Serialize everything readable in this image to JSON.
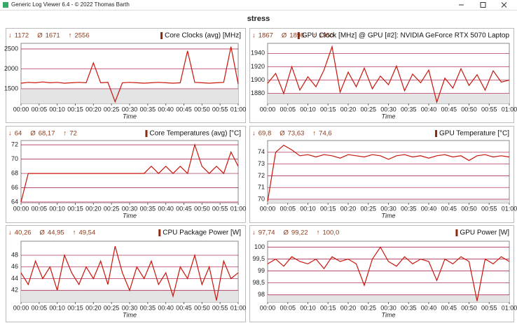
{
  "window_title": "Generic Log Viewer 6.4 - © 2022 Thomas Barth",
  "title": "stress",
  "chart_data": [
    {
      "type": "line",
      "stats": [
        {
          "symbol": "↓",
          "value": 1172
        },
        {
          "symbol": "Ø",
          "value": 1671
        },
        {
          "symbol": "↑",
          "value": 2556
        }
      ],
      "xlabel": "Time",
      "x": [
        0,
        2,
        4,
        6,
        8,
        10,
        12,
        14,
        16,
        18,
        20,
        22,
        24,
        26,
        28,
        30,
        32,
        34,
        36,
        38,
        40,
        42,
        44,
        46,
        48,
        50,
        52,
        54,
        56,
        58,
        60
      ],
      "series": [
        {
          "name": "Core Clocks (avg) [MHz]",
          "color": "#c8140a",
          "values": [
            1640,
            1660,
            1650,
            1670,
            1650,
            1660,
            1640,
            1650,
            1660,
            1650,
            2150,
            1650,
            1660,
            1172,
            1650,
            1660,
            1650,
            1640,
            1650,
            1660,
            1650,
            1640,
            1650,
            2450,
            1660,
            1650,
            1640,
            1650,
            1660,
            2556,
            1620
          ]
        }
      ],
      "xlim": [
        0,
        60
      ],
      "xticks": [
        {
          "value": 0,
          "label": "00:00"
        },
        {
          "value": 5,
          "label": "00:05"
        },
        {
          "value": 10,
          "label": "00:10"
        },
        {
          "value": 15,
          "label": "00:15"
        },
        {
          "value": 20,
          "label": "00:20"
        },
        {
          "value": 25,
          "label": "00:25"
        },
        {
          "value": 30,
          "label": "00:30"
        },
        {
          "value": 35,
          "label": "00:35"
        },
        {
          "value": 40,
          "label": "00:40"
        },
        {
          "value": 45,
          "label": "00:45"
        },
        {
          "value": 50,
          "label": "00:50"
        },
        {
          "value": 55,
          "label": "00:55"
        },
        {
          "value": 60,
          "label": "01:00"
        }
      ],
      "ylim": [
        1130,
        2640
      ],
      "yticks": [
        1500,
        2000,
        2500
      ],
      "grid": true
    },
    {
      "type": "line",
      "stats": [
        {
          "symbol": "↓",
          "value": 1867
        },
        {
          "symbol": "Ø",
          "value": 1898
        },
        {
          "symbol": "↑",
          "value": 1950
        }
      ],
      "xlabel": "Time",
      "x": [
        0,
        2,
        4,
        6,
        8,
        10,
        12,
        14,
        16,
        18,
        20,
        22,
        24,
        26,
        28,
        30,
        32,
        34,
        36,
        38,
        40,
        42,
        44,
        46,
        48,
        50,
        52,
        54,
        56,
        58,
        60
      ],
      "series": [
        {
          "name": "GPU Clock [MHz] @ GPU [#2]: NVIDIA GeForce RTX 5070 Laptop",
          "color": "#c8140a",
          "values": [
            1895,
            1910,
            1880,
            1920,
            1885,
            1905,
            1890,
            1915,
            1950,
            1882,
            1912,
            1890,
            1918,
            1887,
            1906,
            1893,
            1921,
            1884,
            1909,
            1896,
            1915,
            1867,
            1903,
            1888,
            1917,
            1892,
            1908,
            1885,
            1914,
            1897,
            1900
          ]
        }
      ],
      "xlim": [
        0,
        60
      ],
      "xticks": [
        {
          "value": 0,
          "label": "00:00"
        },
        {
          "value": 5,
          "label": "00:05"
        },
        {
          "value": 10,
          "label": "00:10"
        },
        {
          "value": 15,
          "label": "00:15"
        },
        {
          "value": 20,
          "label": "00:20"
        },
        {
          "value": 25,
          "label": "00:25"
        },
        {
          "value": 30,
          "label": "00:30"
        },
        {
          "value": 35,
          "label": "00:35"
        },
        {
          "value": 40,
          "label": "00:40"
        },
        {
          "value": 45,
          "label": "00:45"
        },
        {
          "value": 50,
          "label": "00:50"
        },
        {
          "value": 55,
          "label": "00:55"
        },
        {
          "value": 60,
          "label": "01:00"
        }
      ],
      "ylim": [
        1865,
        1955
      ],
      "yticks": [
        1880,
        1900,
        1920,
        1940
      ],
      "grid": true
    },
    {
      "type": "line",
      "stats": [
        {
          "symbol": "↓",
          "value": 64
        },
        {
          "symbol": "Ø",
          "value": 68.17,
          "label": "68,17"
        },
        {
          "symbol": "↑",
          "value": 72
        }
      ],
      "xlabel": "Time",
      "x": [
        0,
        2,
        4,
        6,
        8,
        10,
        12,
        14,
        16,
        18,
        20,
        22,
        24,
        26,
        28,
        30,
        32,
        34,
        36,
        38,
        40,
        42,
        44,
        46,
        48,
        50,
        52,
        54,
        56,
        58,
        60
      ],
      "series": [
        {
          "name": "Core Temperatures (avg) [°C]",
          "color": "#c8140a",
          "values": [
            64,
            68,
            68,
            68,
            68,
            68,
            68,
            68,
            68,
            68,
            68,
            68,
            68,
            68,
            68,
            68,
            68,
            68,
            69,
            68,
            69,
            68,
            69,
            68,
            72,
            69,
            68,
            69,
            68,
            71,
            69
          ]
        }
      ],
      "xlim": [
        0,
        60
      ],
      "xticks": [
        {
          "value": 0,
          "label": "00:00"
        },
        {
          "value": 5,
          "label": "00:05"
        },
        {
          "value": 10,
          "label": "00:10"
        },
        {
          "value": 15,
          "label": "00:15"
        },
        {
          "value": 20,
          "label": "00:20"
        },
        {
          "value": 25,
          "label": "00:25"
        },
        {
          "value": 30,
          "label": "00:30"
        },
        {
          "value": 35,
          "label": "00:35"
        },
        {
          "value": 40,
          "label": "00:40"
        },
        {
          "value": 45,
          "label": "00:45"
        },
        {
          "value": 50,
          "label": "00:50"
        },
        {
          "value": 55,
          "label": "00:55"
        },
        {
          "value": 60,
          "label": "01:00"
        }
      ],
      "ylim": [
        63.9,
        72.6
      ],
      "yticks": [
        64,
        66,
        68,
        70,
        72
      ],
      "grid": true
    },
    {
      "type": "line",
      "stats": [
        {
          "symbol": "↓",
          "value": 69.8,
          "label": "69,8"
        },
        {
          "symbol": "Ø",
          "value": 73.63,
          "label": "73,63"
        },
        {
          "symbol": "↑",
          "value": 74.6,
          "label": "74,6"
        }
      ],
      "xlabel": "Time",
      "x": [
        0,
        2,
        4,
        6,
        8,
        10,
        12,
        14,
        16,
        18,
        20,
        22,
        24,
        26,
        28,
        30,
        32,
        34,
        36,
        38,
        40,
        42,
        44,
        46,
        48,
        50,
        52,
        54,
        56,
        58,
        60
      ],
      "series": [
        {
          "name": "GPU Temperature [°C]",
          "color": "#c8140a",
          "values": [
            69.8,
            74,
            74.6,
            74.2,
            73.7,
            73.8,
            73.6,
            73.8,
            73.7,
            73.5,
            73.8,
            73.7,
            73.6,
            73.8,
            73.7,
            73.4,
            73.7,
            73.8,
            73.6,
            73.7,
            73.5,
            73.7,
            73.8,
            73.6,
            73.7,
            73.3,
            73.7,
            73.8,
            73.6,
            73.7,
            73.6
          ]
        }
      ],
      "xlim": [
        0,
        60
      ],
      "xticks": [
        {
          "value": 0,
          "label": "00:00"
        },
        {
          "value": 5,
          "label": "00:05"
        },
        {
          "value": 10,
          "label": "00:10"
        },
        {
          "value": 15,
          "label": "00:15"
        },
        {
          "value": 20,
          "label": "00:20"
        },
        {
          "value": 25,
          "label": "00:25"
        },
        {
          "value": 30,
          "label": "00:30"
        },
        {
          "value": 35,
          "label": "00:35"
        },
        {
          "value": 40,
          "label": "00:40"
        },
        {
          "value": 45,
          "label": "00:45"
        },
        {
          "value": 50,
          "label": "00:50"
        },
        {
          "value": 55,
          "label": "00:55"
        },
        {
          "value": 60,
          "label": "01:00"
        }
      ],
      "ylim": [
        69.7,
        75
      ],
      "yticks": [
        70,
        71,
        72,
        73,
        74
      ],
      "grid": true
    },
    {
      "type": "line",
      "stats": [
        {
          "symbol": "↓",
          "value": 40.26,
          "label": "40,26"
        },
        {
          "symbol": "Ø",
          "value": 44.95,
          "label": "44,95"
        },
        {
          "symbol": "↑",
          "value": 49.54,
          "label": "49,54"
        }
      ],
      "xlabel": "Time",
      "x": [
        0,
        2,
        4,
        6,
        8,
        10,
        12,
        14,
        16,
        18,
        20,
        22,
        24,
        26,
        28,
        30,
        32,
        34,
        36,
        38,
        40,
        42,
        44,
        46,
        48,
        50,
        52,
        54,
        56,
        58,
        60
      ],
      "series": [
        {
          "name": "CPU Package Power [W]",
          "color": "#c8140a",
          "values": [
            45,
            43,
            47,
            44,
            46,
            42,
            48,
            45,
            43,
            46,
            44,
            47,
            43,
            49.54,
            45,
            42,
            46,
            44,
            47,
            43,
            45,
            41,
            46,
            44,
            48,
            43,
            46,
            40.26,
            47,
            44,
            45
          ]
        }
      ],
      "xlim": [
        0,
        60
      ],
      "xticks": [
        {
          "value": 0,
          "label": "00:00"
        },
        {
          "value": 5,
          "label": "00:05"
        },
        {
          "value": 10,
          "label": "00:10"
        },
        {
          "value": 15,
          "label": "00:15"
        },
        {
          "value": 20,
          "label": "00:20"
        },
        {
          "value": 25,
          "label": "00:25"
        },
        {
          "value": 30,
          "label": "00:30"
        },
        {
          "value": 35,
          "label": "00:35"
        },
        {
          "value": 40,
          "label": "00:40"
        },
        {
          "value": 45,
          "label": "00:45"
        },
        {
          "value": 50,
          "label": "00:50"
        },
        {
          "value": 55,
          "label": "00:55"
        },
        {
          "value": 60,
          "label": "01:00"
        }
      ],
      "ylim": [
        40,
        50.4
      ],
      "yticks": [
        42,
        44,
        46,
        48
      ],
      "grid": true
    },
    {
      "type": "line",
      "stats": [
        {
          "symbol": "↓",
          "value": 97.74,
          "label": "97,74"
        },
        {
          "symbol": "Ø",
          "value": 99.22,
          "label": "99,22"
        },
        {
          "symbol": "↑",
          "value": 100,
          "label": "100,0"
        }
      ],
      "xlabel": "Time",
      "x": [
        0,
        2,
        4,
        6,
        8,
        10,
        12,
        14,
        16,
        18,
        20,
        22,
        24,
        26,
        28,
        30,
        32,
        34,
        36,
        38,
        40,
        42,
        44,
        46,
        48,
        50,
        52,
        54,
        56,
        58,
        60
      ],
      "series": [
        {
          "name": "GPU Power [W]",
          "color": "#c8140a",
          "values": [
            99.3,
            99.5,
            99.2,
            99.6,
            99.4,
            99.3,
            99.5,
            99.1,
            99.6,
            99.4,
            99.5,
            99.3,
            98.4,
            99.5,
            100,
            99.4,
            99.2,
            99.6,
            99.3,
            99.5,
            99.4,
            98.6,
            99.5,
            99.3,
            99.6,
            99.4,
            97.74,
            99.5,
            99.3,
            99.6,
            99.4
          ]
        }
      ],
      "xlim": [
        0,
        60
      ],
      "xticks": [
        {
          "value": 0,
          "label": "00:00"
        },
        {
          "value": 5,
          "label": "00:05"
        },
        {
          "value": 10,
          "label": "00:10"
        },
        {
          "value": 15,
          "label": "00:15"
        },
        {
          "value": 20,
          "label": "00:20"
        },
        {
          "value": 25,
          "label": "00:25"
        },
        {
          "value": 30,
          "label": "00:30"
        },
        {
          "value": 35,
          "label": "00:35"
        },
        {
          "value": 40,
          "label": "00:40"
        },
        {
          "value": 45,
          "label": "00:45"
        },
        {
          "value": 50,
          "label": "00:50"
        },
        {
          "value": 55,
          "label": "00:55"
        },
        {
          "value": 60,
          "label": "01:00"
        }
      ],
      "ylim": [
        97.7,
        100.25
      ],
      "yticks": [
        {
          "value": 98,
          "label": "98"
        },
        {
          "value": 98.5,
          "label": "98,5"
        },
        {
          "value": 99,
          "label": "99"
        },
        {
          "value": 99.5,
          "label": "99,5"
        },
        {
          "value": 100,
          "label": "100"
        }
      ],
      "grid": true
    }
  ]
}
